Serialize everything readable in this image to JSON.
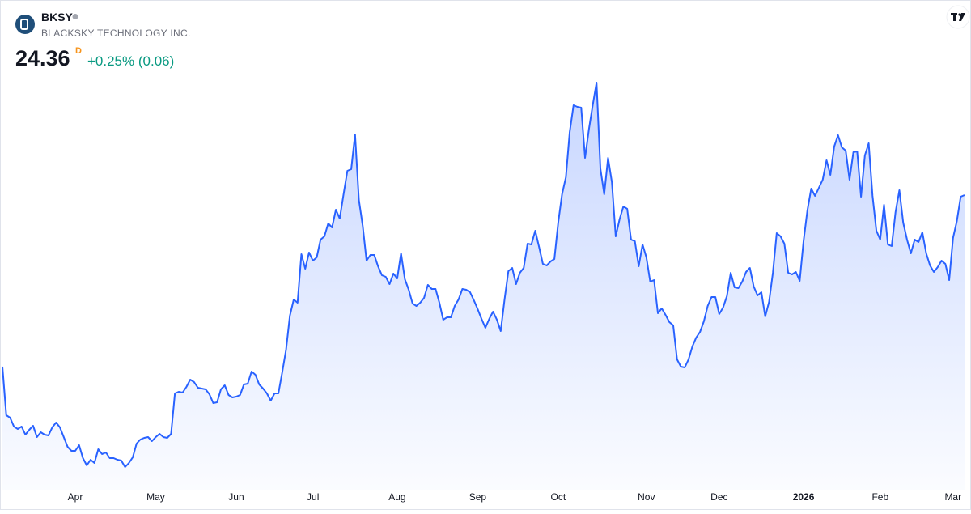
{
  "chart_data": {
    "type": "area",
    "title": "BKSY",
    "subtitle": "BLACKSKY TECHNOLOGY INC.",
    "last_price": 24.36,
    "interval": "D",
    "change": "+0.25% (0.06)",
    "color": "#2962ff",
    "values": [
      13.76,
      10.76,
      10.61,
      10.06,
      9.91,
      10.06,
      9.56,
      9.86,
      10.11,
      9.41,
      9.71,
      9.56,
      9.51,
      10.01,
      10.31,
      10.01,
      9.41,
      8.81,
      8.56,
      8.56,
      8.91,
      8.11,
      7.66,
      8.01,
      7.81,
      8.66,
      8.36,
      8.46,
      8.11,
      8.11,
      8.01,
      7.96,
      7.56,
      7.81,
      8.16,
      9.01,
      9.26,
      9.36,
      9.41,
      9.16,
      9.41,
      9.61,
      9.41,
      9.36,
      9.61,
      12.11,
      12.21,
      12.16,
      12.51,
      12.96,
      12.81,
      12.46,
      12.41,
      12.36,
      12.06,
      11.51,
      11.56,
      12.36,
      12.61,
      12.01,
      11.86,
      11.91,
      12.01,
      12.66,
      12.71,
      13.46,
      13.26,
      12.66,
      12.41,
      12.11,
      11.66,
      12.11,
      12.11,
      13.41,
      14.81,
      16.91,
      17.91,
      17.71,
      20.71,
      19.81,
      20.81,
      20.31,
      20.51,
      21.61,
      21.81,
      22.61,
      22.36,
      23.46,
      22.91,
      24.41,
      25.86,
      25.96,
      28.11,
      24.06,
      22.46,
      20.31,
      20.66,
      20.66,
      19.96,
      19.41,
      19.31,
      18.86,
      19.51,
      19.21,
      20.76,
      19.16,
      18.51,
      17.66,
      17.51,
      17.71,
      18.01,
      18.81,
      18.56,
      18.56,
      17.71,
      16.66,
      16.81,
      16.81,
      17.51,
      17.91,
      18.56,
      18.51,
      18.36,
      17.86,
      17.31,
      16.71,
      16.16,
      16.71,
      17.16,
      16.66,
      15.96,
      17.91,
      19.66,
      19.86,
      18.86,
      19.56,
      19.86,
      21.36,
      21.31,
      22.16,
      21.16,
      20.11,
      20.01,
      20.26,
      20.41,
      22.66,
      24.41,
      25.46,
      28.26,
      29.91,
      29.81,
      29.76,
      26.66,
      28.41,
      29.91,
      31.31,
      26.01,
      24.41,
      26.66,
      25.16,
      21.81,
      22.86,
      23.66,
      23.51,
      21.61,
      21.51,
      19.96,
      21.31,
      20.51,
      19.01,
      19.11,
      17.06,
      17.36,
      16.96,
      16.51,
      16.31,
      14.21,
      13.76,
      13.71,
      14.21,
      15.01,
      15.56,
      15.91,
      16.56,
      17.51,
      18.06,
      18.06,
      17.01,
      17.41,
      18.11,
      19.56,
      18.66,
      18.61,
      19.01,
      19.61,
      19.86,
      18.71,
      18.16,
      18.36,
      16.86,
      17.76,
      19.56,
      22.01,
      21.81,
      21.36,
      19.56,
      19.46,
      19.61,
      19.06,
      21.51,
      23.41,
      24.76,
      24.31,
      24.81,
      25.31,
      26.51,
      25.61,
      27.36,
      28.06,
      27.31,
      27.11,
      25.31,
      27.01,
      27.06,
      24.26,
      26.81,
      27.56,
      24.31,
      22.16,
      21.61,
      23.76,
      21.31,
      21.21,
      23.31,
      24.66,
      22.66,
      21.61,
      20.76,
      21.61,
      21.46,
      22.06,
      20.76,
      20.01,
      19.61,
      19.91,
      20.31,
      20.11,
      19.11,
      21.71,
      22.76,
      24.26,
      24.36
    ],
    "xticks": [
      {
        "value": 19,
        "label": "Apr"
      },
      {
        "value": 40,
        "label": "May"
      },
      {
        "value": 61,
        "label": "Jun"
      },
      {
        "value": 81,
        "label": "Jul"
      },
      {
        "value": 103,
        "label": "Aug"
      },
      {
        "value": 124,
        "label": "Sep"
      },
      {
        "value": 145,
        "label": "Oct"
      },
      {
        "value": 168,
        "label": "Nov"
      },
      {
        "value": 187,
        "label": "Dec"
      },
      {
        "value": 209,
        "label": "2026"
      },
      {
        "value": 229,
        "label": "Feb"
      },
      {
        "value": 248,
        "label": "Mar"
      }
    ]
  }
}
